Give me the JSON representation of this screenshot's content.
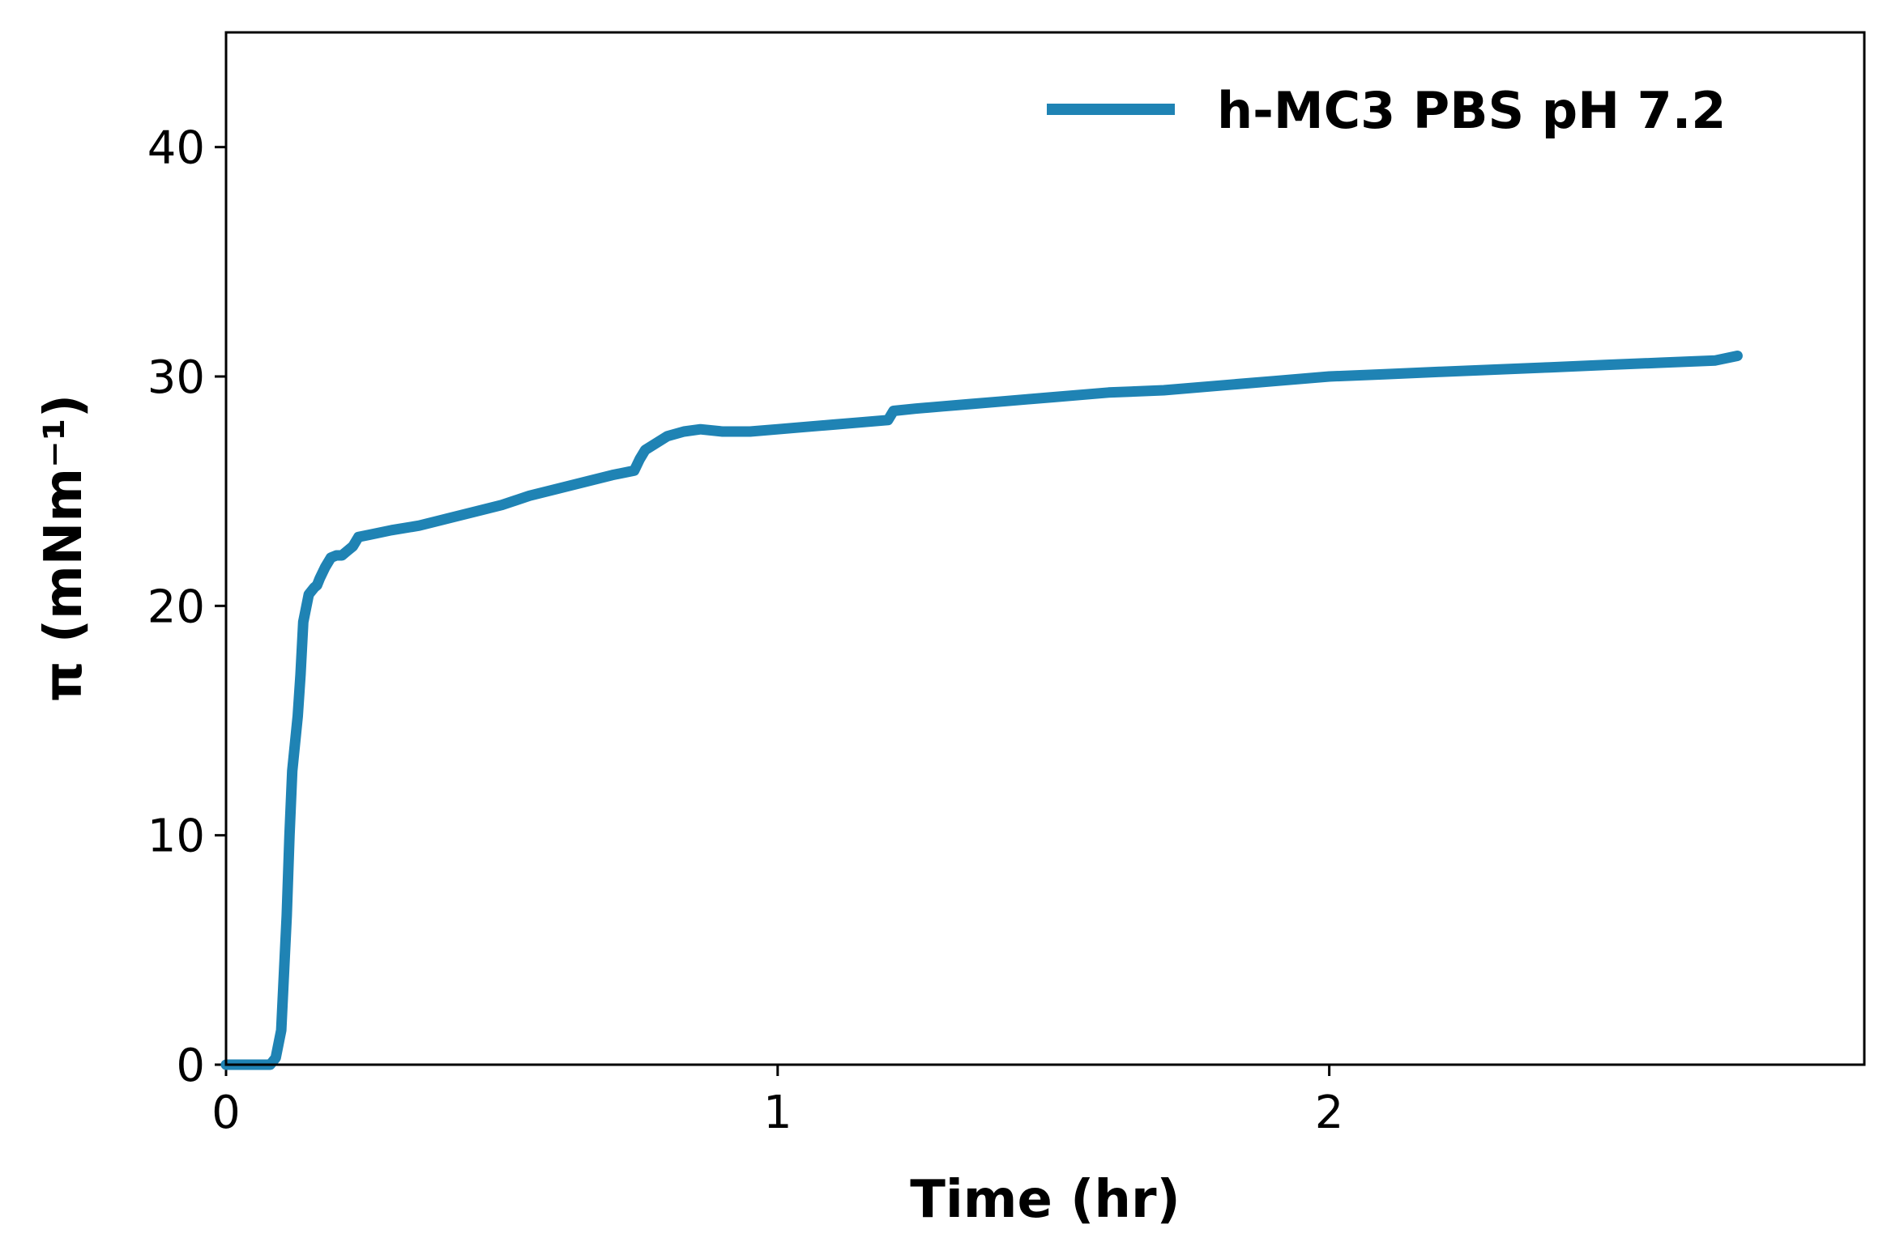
{
  "chart_data": {
    "type": "line",
    "xlabel": "Time (hr)",
    "ylabel": "π (mNm⁻¹)",
    "xlim": [
      0,
      2.97
    ],
    "ylim": [
      0,
      45
    ],
    "xticks": [
      0,
      1,
      2
    ],
    "yticks": [
      0,
      10,
      20,
      30,
      40
    ],
    "legend": {
      "placement": "top-right"
    },
    "grid": false,
    "series": [
      {
        "name": "h-MC3 PBS pH 7.2",
        "color": "#1f83b4",
        "x": [
          0,
          0.04,
          0.08,
          0.09,
          0.1,
          0.11,
          0.115,
          0.12,
          0.125,
          0.13,
          0.135,
          0.14,
          0.15,
          0.16,
          0.165,
          0.17,
          0.18,
          0.19,
          0.2,
          0.21,
          0.22,
          0.23,
          0.24,
          0.26,
          0.3,
          0.35,
          0.4,
          0.45,
          0.5,
          0.55,
          0.6,
          0.65,
          0.7,
          0.74,
          0.75,
          0.76,
          0.78,
          0.8,
          0.83,
          0.86,
          0.9,
          0.95,
          1.0,
          1.05,
          1.1,
          1.15,
          1.2,
          1.21,
          1.25,
          1.3,
          1.35,
          1.4,
          1.45,
          1.5,
          1.6,
          1.7,
          1.8,
          1.9,
          2.0,
          2.1,
          2.2,
          2.3,
          2.4,
          2.5,
          2.6,
          2.7,
          2.74
        ],
        "y": [
          0,
          0,
          0,
          0.3,
          1.5,
          6.5,
          10,
          12.8,
          14,
          15.2,
          17,
          19.3,
          20.5,
          20.8,
          20.9,
          21.2,
          21.7,
          22.1,
          22.2,
          22.2,
          22.4,
          22.6,
          23.0,
          23.1,
          23.3,
          23.5,
          23.8,
          24.1,
          24.4,
          24.8,
          25.1,
          25.4,
          25.7,
          25.9,
          26.4,
          26.8,
          27.1,
          27.4,
          27.6,
          27.7,
          27.6,
          27.6,
          27.7,
          27.8,
          27.9,
          28.0,
          28.1,
          28.5,
          28.6,
          28.7,
          28.8,
          28.9,
          29.0,
          29.1,
          29.3,
          29.4,
          29.6,
          29.8,
          30.0,
          30.1,
          30.2,
          30.3,
          30.4,
          30.5,
          30.6,
          30.7,
          30.9
        ]
      }
    ]
  }
}
